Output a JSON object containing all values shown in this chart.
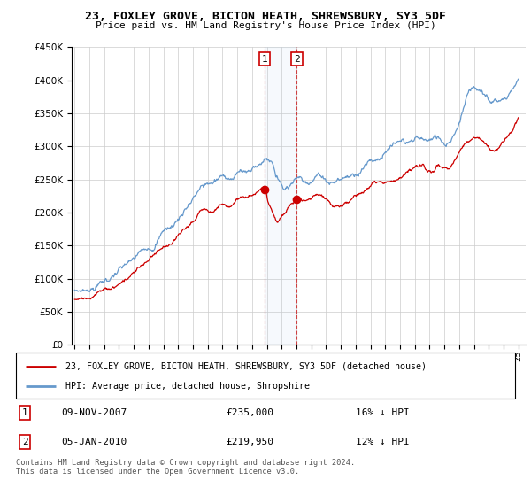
{
  "title": "23, FOXLEY GROVE, BICTON HEATH, SHREWSBURY, SY3 5DF",
  "subtitle": "Price paid vs. HM Land Registry's House Price Index (HPI)",
  "legend_line1": "23, FOXLEY GROVE, BICTON HEATH, SHREWSBURY, SY3 5DF (detached house)",
  "legend_line2": "HPI: Average price, detached house, Shropshire",
  "transaction1_date": "09-NOV-2007",
  "transaction1_price": "£235,000",
  "transaction1_hpi": "16% ↓ HPI",
  "transaction2_date": "05-JAN-2010",
  "transaction2_price": "£219,950",
  "transaction2_hpi": "12% ↓ HPI",
  "footer": "Contains HM Land Registry data © Crown copyright and database right 2024.\nThis data is licensed under the Open Government Licence v3.0.",
  "hpi_color": "#6699cc",
  "price_color": "#cc0000",
  "marker1_x": 2007.86,
  "marker1_y": 235000,
  "marker2_x": 2010.03,
  "marker2_y": 219950,
  "ylim": [
    0,
    450000
  ],
  "xlim": [
    1994.8,
    2025.5
  ],
  "background_color": "#ffffff",
  "grid_color": "#cccccc",
  "hpi_data_years": [
    1995,
    1995.5,
    1996,
    1996.5,
    1997,
    1997.5,
    1998,
    1998.5,
    1999,
    1999.5,
    2000,
    2000.5,
    2001,
    2001.5,
    2002,
    2002.5,
    2003,
    2003.5,
    2004,
    2004.5,
    2005,
    2005.5,
    2006,
    2006.5,
    2007,
    2007.5,
    2008,
    2008.25,
    2008.5,
    2008.75,
    2009,
    2009.25,
    2009.5,
    2009.75,
    2010,
    2010.5,
    2011,
    2011.5,
    2012,
    2012.5,
    2013,
    2013.5,
    2014,
    2014.5,
    2015,
    2015.5,
    2016,
    2016.5,
    2017,
    2017.5,
    2018,
    2018.5,
    2019,
    2019.5,
    2020,
    2020.5,
    2021,
    2021.25,
    2021.5,
    2021.75,
    2022,
    2022.25,
    2022.5,
    2022.75,
    2023,
    2023.5,
    2024,
    2024.5,
    2025
  ],
  "hpi_data_vals": [
    82000,
    83000,
    86000,
    90000,
    96000,
    103000,
    110000,
    118000,
    128000,
    140000,
    150000,
    160000,
    170000,
    178000,
    190000,
    208000,
    222000,
    235000,
    242000,
    248000,
    252000,
    255000,
    258000,
    262000,
    267000,
    278000,
    282000,
    278000,
    268000,
    256000,
    245000,
    242000,
    244000,
    248000,
    250000,
    252000,
    254000,
    255000,
    252000,
    248000,
    250000,
    255000,
    262000,
    272000,
    280000,
    285000,
    290000,
    295000,
    300000,
    305000,
    308000,
    310000,
    310000,
    312000,
    308000,
    318000,
    340000,
    355000,
    370000,
    382000,
    390000,
    392000,
    388000,
    382000,
    372000,
    368000,
    372000,
    385000,
    400000
  ],
  "prop_data_years": [
    1995,
    1995.5,
    1996,
    1996.5,
    1997,
    1997.5,
    1998,
    1998.5,
    1999,
    1999.5,
    2000,
    2000.5,
    2001,
    2001.5,
    2002,
    2002.5,
    2003,
    2003.5,
    2004,
    2004.5,
    2005,
    2005.5,
    2006,
    2006.5,
    2007,
    2007.25,
    2007.5,
    2007.75,
    2007.86,
    2008,
    2008.25,
    2008.5,
    2008.75,
    2009,
    2009.25,
    2009.5,
    2009.75,
    2010.03,
    2010.5,
    2011,
    2011.5,
    2012,
    2012.5,
    2013,
    2013.5,
    2014,
    2014.5,
    2015,
    2015.5,
    2016,
    2016.5,
    2017,
    2017.5,
    2018,
    2018.5,
    2019,
    2019.5,
    2020,
    2020.5,
    2021,
    2021.5,
    2022,
    2022.5,
    2023,
    2023.5,
    2024,
    2024.5,
    2025
  ],
  "prop_data_vals": [
    70000,
    71000,
    73000,
    76000,
    80000,
    87000,
    93000,
    100000,
    108000,
    118000,
    126000,
    135000,
    143000,
    150000,
    160000,
    175000,
    187000,
    198000,
    204000,
    209000,
    213000,
    215000,
    218000,
    221000,
    225000,
    228000,
    232000,
    234000,
    235000,
    222000,
    210000,
    198000,
    192000,
    195000,
    200000,
    208000,
    215000,
    219950,
    218000,
    220000,
    222000,
    218000,
    210000,
    212000,
    218000,
    225000,
    232000,
    240000,
    245000,
    248000,
    252000,
    256000,
    260000,
    264000,
    268000,
    262000,
    265000,
    262000,
    272000,
    290000,
    308000,
    318000,
    312000,
    300000,
    295000,
    305000,
    320000,
    345000
  ]
}
